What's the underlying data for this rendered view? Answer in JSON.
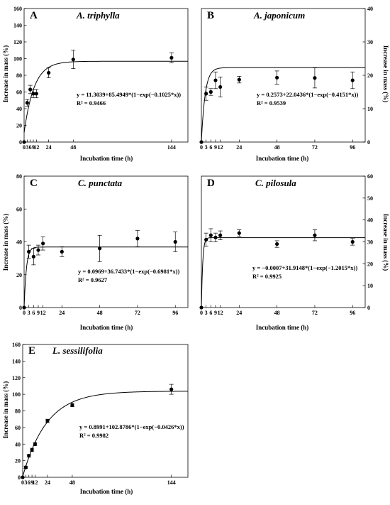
{
  "figure": {
    "panels": [
      {
        "letter": "A",
        "title": "A. triphylla",
        "xlabel": "Incubation time (h)",
        "ylabel": "Increase in mass (%)",
        "ylabel_side": "left",
        "equation": "y = 11.3039+85.4949*(1−exp(−0.1025*x))",
        "r2": "R² = 0.9466"
      },
      {
        "letter": "B",
        "title": "A. japonicum",
        "xlabel": "Incubation time (h)",
        "ylabel": "Increase in mass (%)",
        "ylabel_side": "right",
        "equation": "y = 0.2573+22.0436*(1−exp(−0.4151*x))",
        "r2": "R² = 0.9539"
      },
      {
        "letter": "C",
        "title": "C. punctata",
        "xlabel": "Incubation time (h)",
        "ylabel": "Increase in mass (%)",
        "ylabel_side": "left",
        "equation": "y = 0.0969+36.7433*(1−exp(−0.6981*x))",
        "r2": "R² = 0.9627"
      },
      {
        "letter": "D",
        "title": "C. pilosula",
        "xlabel": "Incubation time (h)",
        "ylabel": "Increase in mass (%)",
        "ylabel_side": "right",
        "equation": "y = −0.0007+31.9148*(1−exp(−1.2015*x))",
        "r2": "R² = 0.9925"
      },
      {
        "letter": "E",
        "title": "L. sessilifolia",
        "xlabel": "Incubation time (h)",
        "ylabel": "Increase in mass (%)",
        "ylabel_side": "left",
        "equation": "y = 0.8991+102.8786*(1−exp(−0.0426*x))",
        "r2": "R² = 0.9982"
      }
    ]
  },
  "chart_data": [
    {
      "type": "scatter",
      "panel": "A",
      "title": "A. triphylla",
      "xlabel": "Incubation time (h)",
      "ylabel": "Increase in mass (%)",
      "xlim": [
        0,
        160
      ],
      "ylim": [
        0,
        160
      ],
      "xticks": [
        0,
        3,
        6,
        9,
        12,
        24,
        48,
        144
      ],
      "xtick_labels": [
        "0",
        "3",
        "6",
        "9",
        "12",
        "24",
        "48",
        "144"
      ],
      "yticks": [
        0,
        20,
        40,
        60,
        80,
        100,
        120,
        140,
        160
      ],
      "x": [
        0,
        3,
        6,
        9,
        12,
        24,
        48,
        144
      ],
      "y": [
        0,
        47,
        63,
        58,
        58,
        83,
        99,
        101
      ],
      "err": [
        0,
        4,
        5,
        5,
        5,
        6,
        11,
        6
      ],
      "fit": {
        "a": 11.3039,
        "b": 85.4949,
        "k": 0.1025
      },
      "grid": false
    },
    {
      "type": "scatter",
      "panel": "B",
      "title": "A. japonicum",
      "xlabel": "Incubation time (h)",
      "ylabel": "Increase in mass (%)",
      "xlim": [
        0,
        104
      ],
      "ylim": [
        0,
        40
      ],
      "xticks": [
        0,
        3,
        6,
        9,
        12,
        24,
        48,
        72,
        96
      ],
      "xtick_labels": [
        "0",
        "3",
        "6",
        "9",
        "12",
        "24",
        "48",
        "72",
        "96"
      ],
      "yticks": [
        0,
        10,
        20,
        30,
        40
      ],
      "x": [
        0,
        3,
        6,
        9,
        12,
        24,
        48,
        72,
        96
      ],
      "y": [
        0,
        14.5,
        15,
        18.5,
        16.5,
        18.7,
        19.3,
        19.2,
        18.5
      ],
      "err": [
        0,
        2,
        1,
        2.5,
        3,
        1,
        2,
        3,
        2.5
      ],
      "fit": {
        "a": 0.2573,
        "b": 22.0436,
        "k": 0.4151
      },
      "grid": false
    },
    {
      "type": "scatter",
      "panel": "C",
      "title": "C. punctata",
      "xlabel": "Incubation time (h)",
      "ylabel": "Increase in mass (%)",
      "xlim": [
        0,
        104
      ],
      "ylim": [
        0,
        80
      ],
      "xticks": [
        0,
        3,
        6,
        9,
        12,
        24,
        48,
        72,
        96
      ],
      "xtick_labels": [
        "0",
        "3",
        "6",
        "9",
        "12",
        "24",
        "48",
        "72",
        "96"
      ],
      "yticks": [
        0,
        20,
        40,
        60,
        80
      ],
      "x": [
        0,
        3,
        6,
        9,
        12,
        24,
        48,
        72,
        96
      ],
      "y": [
        0,
        34,
        31,
        35,
        39,
        34,
        36,
        42,
        40
      ],
      "err": [
        0,
        4,
        5,
        3,
        4,
        3,
        8,
        5,
        6
      ],
      "fit": {
        "a": 0.0969,
        "b": 36.7433,
        "k": 0.6981
      },
      "grid": false
    },
    {
      "type": "scatter",
      "panel": "D",
      "title": "C. pilosula",
      "xlabel": "Incubation time (h)",
      "ylabel": "Increase in mass (%)",
      "xlim": [
        0,
        104
      ],
      "ylim": [
        0,
        60
      ],
      "xticks": [
        0,
        3,
        6,
        9,
        12,
        24,
        48,
        72,
        96
      ],
      "xtick_labels": [
        "0",
        "3",
        "6",
        "9",
        "12",
        "24",
        "48",
        "72",
        "96"
      ],
      "yticks": [
        0,
        10,
        20,
        30,
        40,
        50,
        60
      ],
      "x": [
        0,
        3,
        6,
        9,
        12,
        24,
        48,
        72,
        96
      ],
      "y": [
        0,
        31,
        33,
        32,
        33,
        34,
        29,
        33,
        30
      ],
      "err": [
        0,
        3,
        3,
        2,
        2,
        1.5,
        1.5,
        2.5,
        1.5
      ],
      "fit": {
        "a": -0.0007,
        "b": 31.9148,
        "k": 1.2015
      },
      "grid": false
    },
    {
      "type": "scatter",
      "panel": "E",
      "title": "L. sessilifolia",
      "xlabel": "Incubation time (h)",
      "ylabel": "Increase in mass (%)",
      "xlim": [
        0,
        160
      ],
      "ylim": [
        0,
        160
      ],
      "xticks": [
        0,
        3,
        6,
        9,
        12,
        24,
        48,
        144
      ],
      "xtick_labels": [
        "0",
        "3",
        "6",
        "9",
        "12",
        "24",
        "48",
        "144"
      ],
      "yticks": [
        0,
        20,
        40,
        60,
        80,
        100,
        120,
        140,
        160
      ],
      "x": [
        0,
        3,
        6,
        9,
        12,
        24,
        48,
        144
      ],
      "y": [
        0,
        12,
        26,
        33,
        40,
        68,
        87,
        106
      ],
      "err": [
        0,
        1.5,
        1.5,
        2,
        2,
        2,
        2,
        6
      ],
      "fit": {
        "a": 0.8991,
        "b": 102.8786,
        "k": 0.0426
      },
      "grid": false
    }
  ]
}
